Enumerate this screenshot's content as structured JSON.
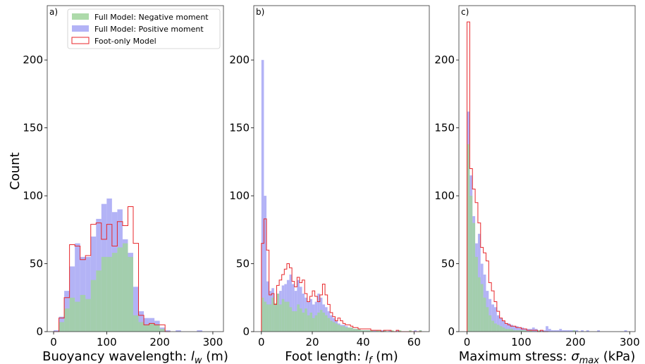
{
  "figure": {
    "ylabel": "Count",
    "colors": {
      "negative": "#9fd49b",
      "positive": "#a6a6f5",
      "foot_only": "#e8262a"
    },
    "legend": {
      "placement": "top-right of panel a",
      "items": [
        {
          "label": "Full Model: Negative moment",
          "kind": "fill",
          "color_key": "negative"
        },
        {
          "label": "Full Model: Positive moment",
          "kind": "fill",
          "color_key": "positive"
        },
        {
          "label": "Foot-only Model",
          "kind": "step",
          "color_key": "foot_only"
        }
      ]
    }
  },
  "chart_data": [
    {
      "panel": "a)",
      "type": "histogram",
      "xlabel": "Buoyancy wavelength: l_w (m)",
      "xlabel_parts": {
        "before": "Buoyancy wavelength: ",
        "sym": "l",
        "sub": "w",
        "after": " (m)"
      },
      "xlim": [
        -12,
        320
      ],
      "ylim": [
        0,
        240
      ],
      "xticks": [
        0,
        100,
        200,
        300
      ],
      "yticks": [
        0,
        50,
        100,
        150,
        200
      ],
      "show_ylabel": true,
      "series": [
        {
          "name": "Full Model: Negative moment",
          "bins": {
            "start": 0,
            "width": 10
          },
          "counts": [
            0,
            7,
            17,
            25,
            22,
            27,
            24,
            38,
            45,
            55,
            55,
            58,
            62,
            65,
            55,
            12,
            7,
            5,
            6,
            5,
            2,
            0
          ]
        },
        {
          "name": "Full Model: Positive moment",
          "bins": {
            "start": 0,
            "width": 10
          },
          "counts": [
            1,
            11,
            30,
            48,
            65,
            55,
            55,
            70,
            83,
            94,
            98,
            88,
            90,
            68,
            58,
            33,
            15,
            10,
            10,
            8,
            3,
            1,
            0,
            1,
            0,
            0,
            0,
            1,
            0,
            0
          ]
        },
        {
          "name": "Foot-only Model",
          "bins": {
            "start": 0,
            "width": 10
          },
          "counts": [
            0,
            10,
            25,
            64,
            63,
            53,
            56,
            79,
            80,
            68,
            79,
            63,
            81,
            78,
            92,
            65,
            12,
            5,
            6,
            5,
            5,
            0
          ]
        }
      ]
    },
    {
      "panel": "b)",
      "type": "histogram",
      "xlabel": "Foot length: l_f (m)",
      "xlabel_parts": {
        "before": "Foot length: ",
        "sym": "l",
        "sub": "f",
        "after": " (m)"
      },
      "xlim": [
        -3,
        66
      ],
      "ylim": [
        0,
        240
      ],
      "xticks": [
        0,
        20,
        40,
        60
      ],
      "yticks": [
        0,
        50,
        100,
        150,
        200
      ],
      "show_ylabel": false,
      "series": [
        {
          "name": "Full Model: Negative moment",
          "bins": {
            "start": 0,
            "width": 1
          },
          "counts": [
            25,
            22,
            20,
            20,
            25,
            21,
            28,
            20,
            24,
            22,
            22,
            18,
            15,
            15,
            20,
            17,
            14,
            17,
            12,
            14,
            10,
            12,
            14,
            16,
            14,
            12,
            10,
            8,
            7,
            6,
            5,
            4,
            4,
            3,
            3,
            3,
            2,
            2,
            2,
            1,
            1,
            1,
            1,
            1,
            0,
            1,
            1,
            0,
            1,
            0,
            0,
            1,
            0,
            0,
            1,
            0,
            0,
            0,
            1,
            0,
            0,
            0,
            1
          ]
        },
        {
          "name": "Full Model: Positive moment",
          "bins": {
            "start": 0,
            "width": 1
          },
          "counts": [
            200,
            100,
            37,
            30,
            32,
            20,
            28,
            30,
            34,
            35,
            38,
            42,
            35,
            30,
            38,
            33,
            28,
            25,
            22,
            24,
            20,
            22,
            28,
            25,
            20,
            18,
            15,
            12,
            10,
            8,
            6,
            5,
            5,
            4,
            3,
            3,
            2,
            2,
            2,
            1,
            1,
            1,
            1,
            1,
            1,
            1,
            0,
            1,
            1,
            0,
            1,
            0,
            0,
            1,
            0,
            0,
            0,
            0,
            0,
            0,
            1,
            0,
            1
          ]
        },
        {
          "name": "Foot-only Model",
          "bins": {
            "start": 0,
            "width": 1
          },
          "counts": [
            65,
            83,
            60,
            27,
            28,
            20,
            34,
            38,
            42,
            46,
            50,
            47,
            37,
            33,
            40,
            36,
            38,
            28,
            22,
            26,
            30,
            26,
            22,
            27,
            35,
            27,
            20,
            14,
            11,
            8,
            10,
            8,
            6,
            5,
            5,
            4,
            3,
            3,
            2,
            2,
            2,
            2,
            2,
            1,
            1,
            1,
            1,
            0,
            1,
            1,
            1,
            0,
            0,
            1,
            0,
            0,
            0,
            0,
            0,
            0,
            0,
            0,
            0
          ]
        }
      ]
    },
    {
      "panel": "c)",
      "type": "histogram",
      "xlabel": "Maximum stress: σ_max (kPa)",
      "xlabel_parts": {
        "before": "Maximum stress: ",
        "sym": "σ",
        "sub": "max",
        "after": " (kPa)"
      },
      "xlim": [
        -15,
        310
      ],
      "ylim": [
        0,
        240
      ],
      "xticks": [
        0,
        100,
        200,
        300
      ],
      "yticks": [
        0,
        50,
        100,
        150,
        200
      ],
      "show_ylabel": false,
      "series": [
        {
          "name": "Full Model: Negative moment",
          "bins": {
            "start": 0,
            "width": 5
          },
          "counts": [
            138,
            100,
            80,
            55,
            40,
            35,
            25,
            18,
            12,
            8,
            6,
            5,
            4,
            3,
            2,
            2,
            2,
            1,
            1,
            1,
            1,
            1,
            0,
            1,
            0,
            0,
            1,
            0,
            0,
            0,
            0,
            0,
            0,
            0,
            0,
            0,
            0,
            0,
            0,
            1
          ]
        },
        {
          "name": "Full Model: Positive moment",
          "bins": {
            "start": 0,
            "width": 5
          },
          "counts": [
            162,
            115,
            85,
            65,
            72,
            50,
            42,
            30,
            24,
            20,
            18,
            12,
            10,
            8,
            6,
            6,
            5,
            4,
            4,
            3,
            3,
            2,
            2,
            2,
            3,
            2,
            1,
            1,
            1,
            4,
            2,
            1,
            1,
            1,
            2,
            1,
            1,
            1,
            1,
            1,
            1,
            0,
            1,
            0,
            1,
            0,
            0,
            0,
            1,
            0,
            0,
            0,
            0,
            0,
            0,
            0,
            0,
            0,
            1
          ]
        },
        {
          "name": "Foot-only Model",
          "bins": {
            "start": 0,
            "width": 5
          },
          "counts": [
            228,
            120,
            105,
            95,
            80,
            62,
            58,
            52,
            36,
            30,
            22,
            15,
            10,
            8,
            6,
            5,
            4,
            4,
            3,
            3,
            2,
            2,
            1,
            1,
            1,
            1,
            0,
            1,
            0,
            0
          ]
        }
      ]
    }
  ]
}
